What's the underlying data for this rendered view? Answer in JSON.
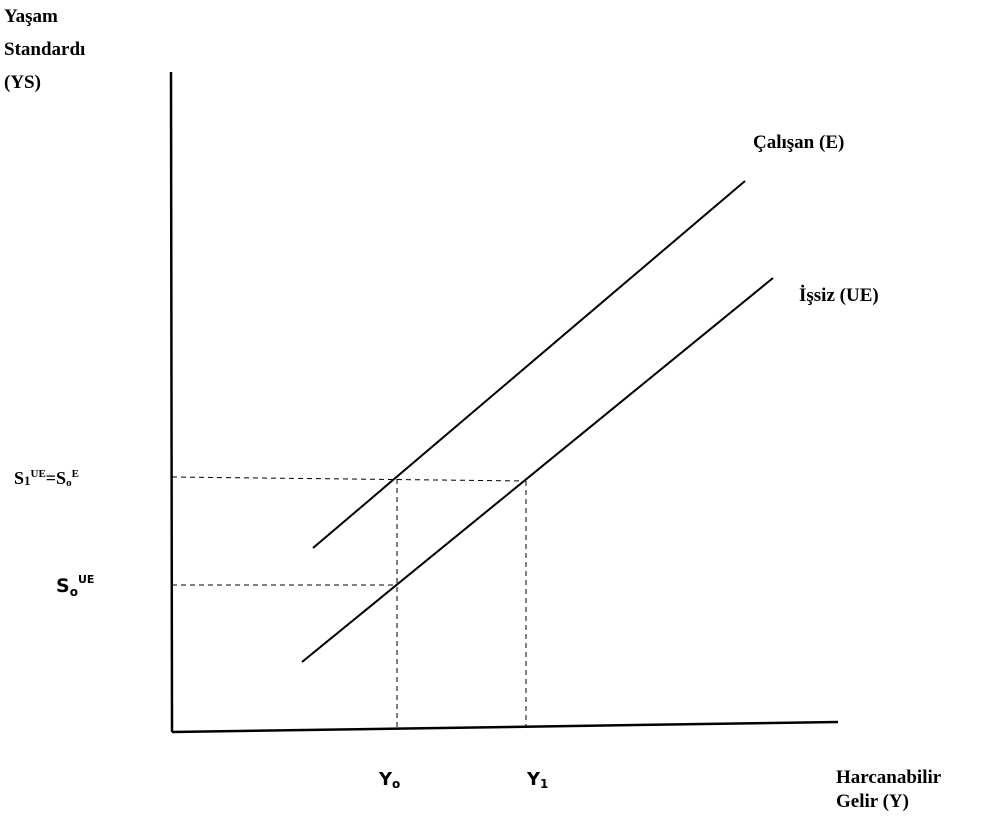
{
  "y_axis": {
    "line1": "Yaşam",
    "line2": "Standardı",
    "line3": "(YS)"
  },
  "x_axis": {
    "line1": "Harcanabilir",
    "line2": "Gelir (Y)"
  },
  "curves": {
    "employed": "Çalışan (E)",
    "unemployed": "İşsiz (UE)"
  },
  "y_ticks": {
    "upper": {
      "s": "S",
      "sub": "1",
      "sup1": "UE",
      "eq": "=S",
      "sub2": "o",
      "sup2": "E"
    },
    "lower": {
      "s": "S",
      "sub": "o",
      "sup": "UE"
    }
  },
  "x_ticks": {
    "y0": {
      "y": "Y",
      "sub": "o"
    },
    "y1": {
      "y": "Y",
      "sub": "1"
    }
  }
}
